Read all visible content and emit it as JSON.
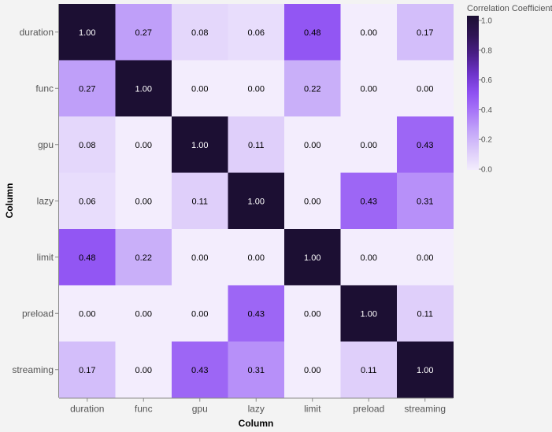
{
  "chart_data": {
    "type": "heatmap",
    "x_categories": [
      "duration",
      "func",
      "gpu",
      "lazy",
      "limit",
      "preload",
      "streaming"
    ],
    "y_categories": [
      "duration",
      "func",
      "gpu",
      "lazy",
      "limit",
      "preload",
      "streaming"
    ],
    "values": [
      [
        1.0,
        0.27,
        0.08,
        0.06,
        0.48,
        0.0,
        0.17
      ],
      [
        0.27,
        1.0,
        0.0,
        0.0,
        0.22,
        0.0,
        0.0
      ],
      [
        0.08,
        0.0,
        1.0,
        0.11,
        0.0,
        0.0,
        0.43
      ],
      [
        0.06,
        0.0,
        0.11,
        1.0,
        0.0,
        0.43,
        0.31
      ],
      [
        0.48,
        0.22,
        0.0,
        0.0,
        1.0,
        0.0,
        0.0
      ],
      [
        0.0,
        0.0,
        0.0,
        0.43,
        0.0,
        1.0,
        0.11
      ],
      [
        0.17,
        0.0,
        0.43,
        0.31,
        0.0,
        0.11,
        1.0
      ]
    ],
    "xlabel": "Column",
    "ylabel": "Column",
    "legend": {
      "title": "Correlation Coefficient",
      "ticks": [
        "1.0",
        "0.8",
        "0.6",
        "0.4",
        "0.2",
        "0.0"
      ],
      "range": [
        0,
        1
      ],
      "placement": "top-right"
    },
    "color_scale": [
      "#f3edfd",
      "#dccbfa",
      "#c3a6f9",
      "#a978f8",
      "#8e50f2",
      "#6d33c9",
      "#4a1f88",
      "#2f1454",
      "#1c0f33"
    ]
  }
}
